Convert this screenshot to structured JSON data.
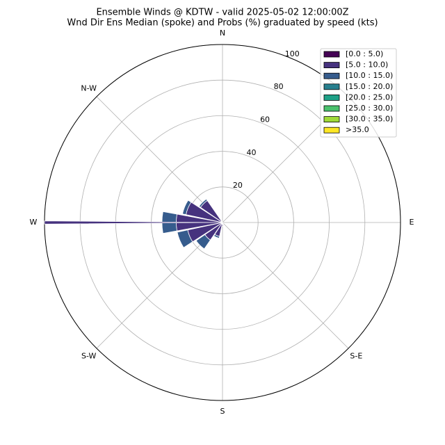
{
  "chart_data": {
    "type": "windrose",
    "title": "Ensemble Winds @ KDTW - valid 2025-05-02 12:00:00Z",
    "subtitle": "Wnd Dir Ens Median (spoke) and Probs (%) graduated by speed (kts)",
    "direction_labels": [
      "N",
      null,
      "E",
      "S-E",
      "S",
      "S-W",
      "W",
      "N-W"
    ],
    "directions": [
      0,
      22.5,
      45,
      67.5,
      90,
      112.5,
      135,
      157.5,
      180,
      202.5,
      225,
      247.5,
      270,
      292.5,
      315,
      337.5
    ],
    "rlim": [
      0,
      100
    ],
    "rticks": [
      20,
      40,
      60,
      80,
      100
    ],
    "grid": true,
    "legend": "upper right",
    "spoke": {
      "direction": 270,
      "value": 100,
      "color": "#46327e"
    },
    "series": [
      {
        "name": "[0.0 : 5.0)",
        "color": "#440154",
        "values": [
          0,
          0,
          0,
          0,
          0,
          0,
          0,
          0,
          0,
          0,
          0,
          0,
          0,
          0,
          0,
          0
        ]
      },
      {
        "name": "[5.0 : 10.0)",
        "color": "#46327e",
        "values": [
          0,
          0,
          0,
          0,
          0,
          0,
          0.5,
          1,
          2,
          8,
          12,
          20,
          26,
          21,
          15,
          1
        ]
      },
      {
        "name": "[10.0 : 15.0)",
        "color": "#365c8d",
        "values": [
          0,
          0,
          0,
          0,
          0,
          0,
          0,
          0,
          0,
          1,
          6,
          6,
          8,
          2,
          1,
          0
        ]
      },
      {
        "name": "[15.0 : 20.0)",
        "color": "#277f8e",
        "values": [
          0,
          0,
          0,
          0,
          0,
          0,
          0,
          0,
          0,
          0,
          0,
          0,
          0,
          0,
          0,
          0
        ]
      },
      {
        "name": "[20.0 : 25.0)",
        "color": "#1fa187",
        "values": [
          0,
          0,
          0,
          0,
          0,
          0,
          0,
          0,
          0,
          0,
          0,
          0,
          0,
          0,
          0,
          0
        ]
      },
      {
        "name": "[25.0 : 30.0)",
        "color": "#4ac16d",
        "values": [
          0,
          0,
          0,
          0,
          0,
          0,
          0,
          0,
          0,
          0,
          0,
          0,
          0,
          0,
          0,
          0
        ]
      },
      {
        "name": "[30.0 : 35.0)",
        "color": "#a0da39",
        "values": [
          0,
          0,
          0,
          0,
          0,
          0,
          0,
          0,
          0,
          0,
          0,
          0,
          0,
          0,
          0,
          0
        ]
      },
      {
        "name": ">35.0",
        "color": "#fde725",
        "values": [
          0,
          0,
          0,
          0,
          0,
          0,
          0,
          0,
          0,
          0,
          0,
          0,
          0,
          0,
          0,
          0
        ]
      }
    ]
  }
}
